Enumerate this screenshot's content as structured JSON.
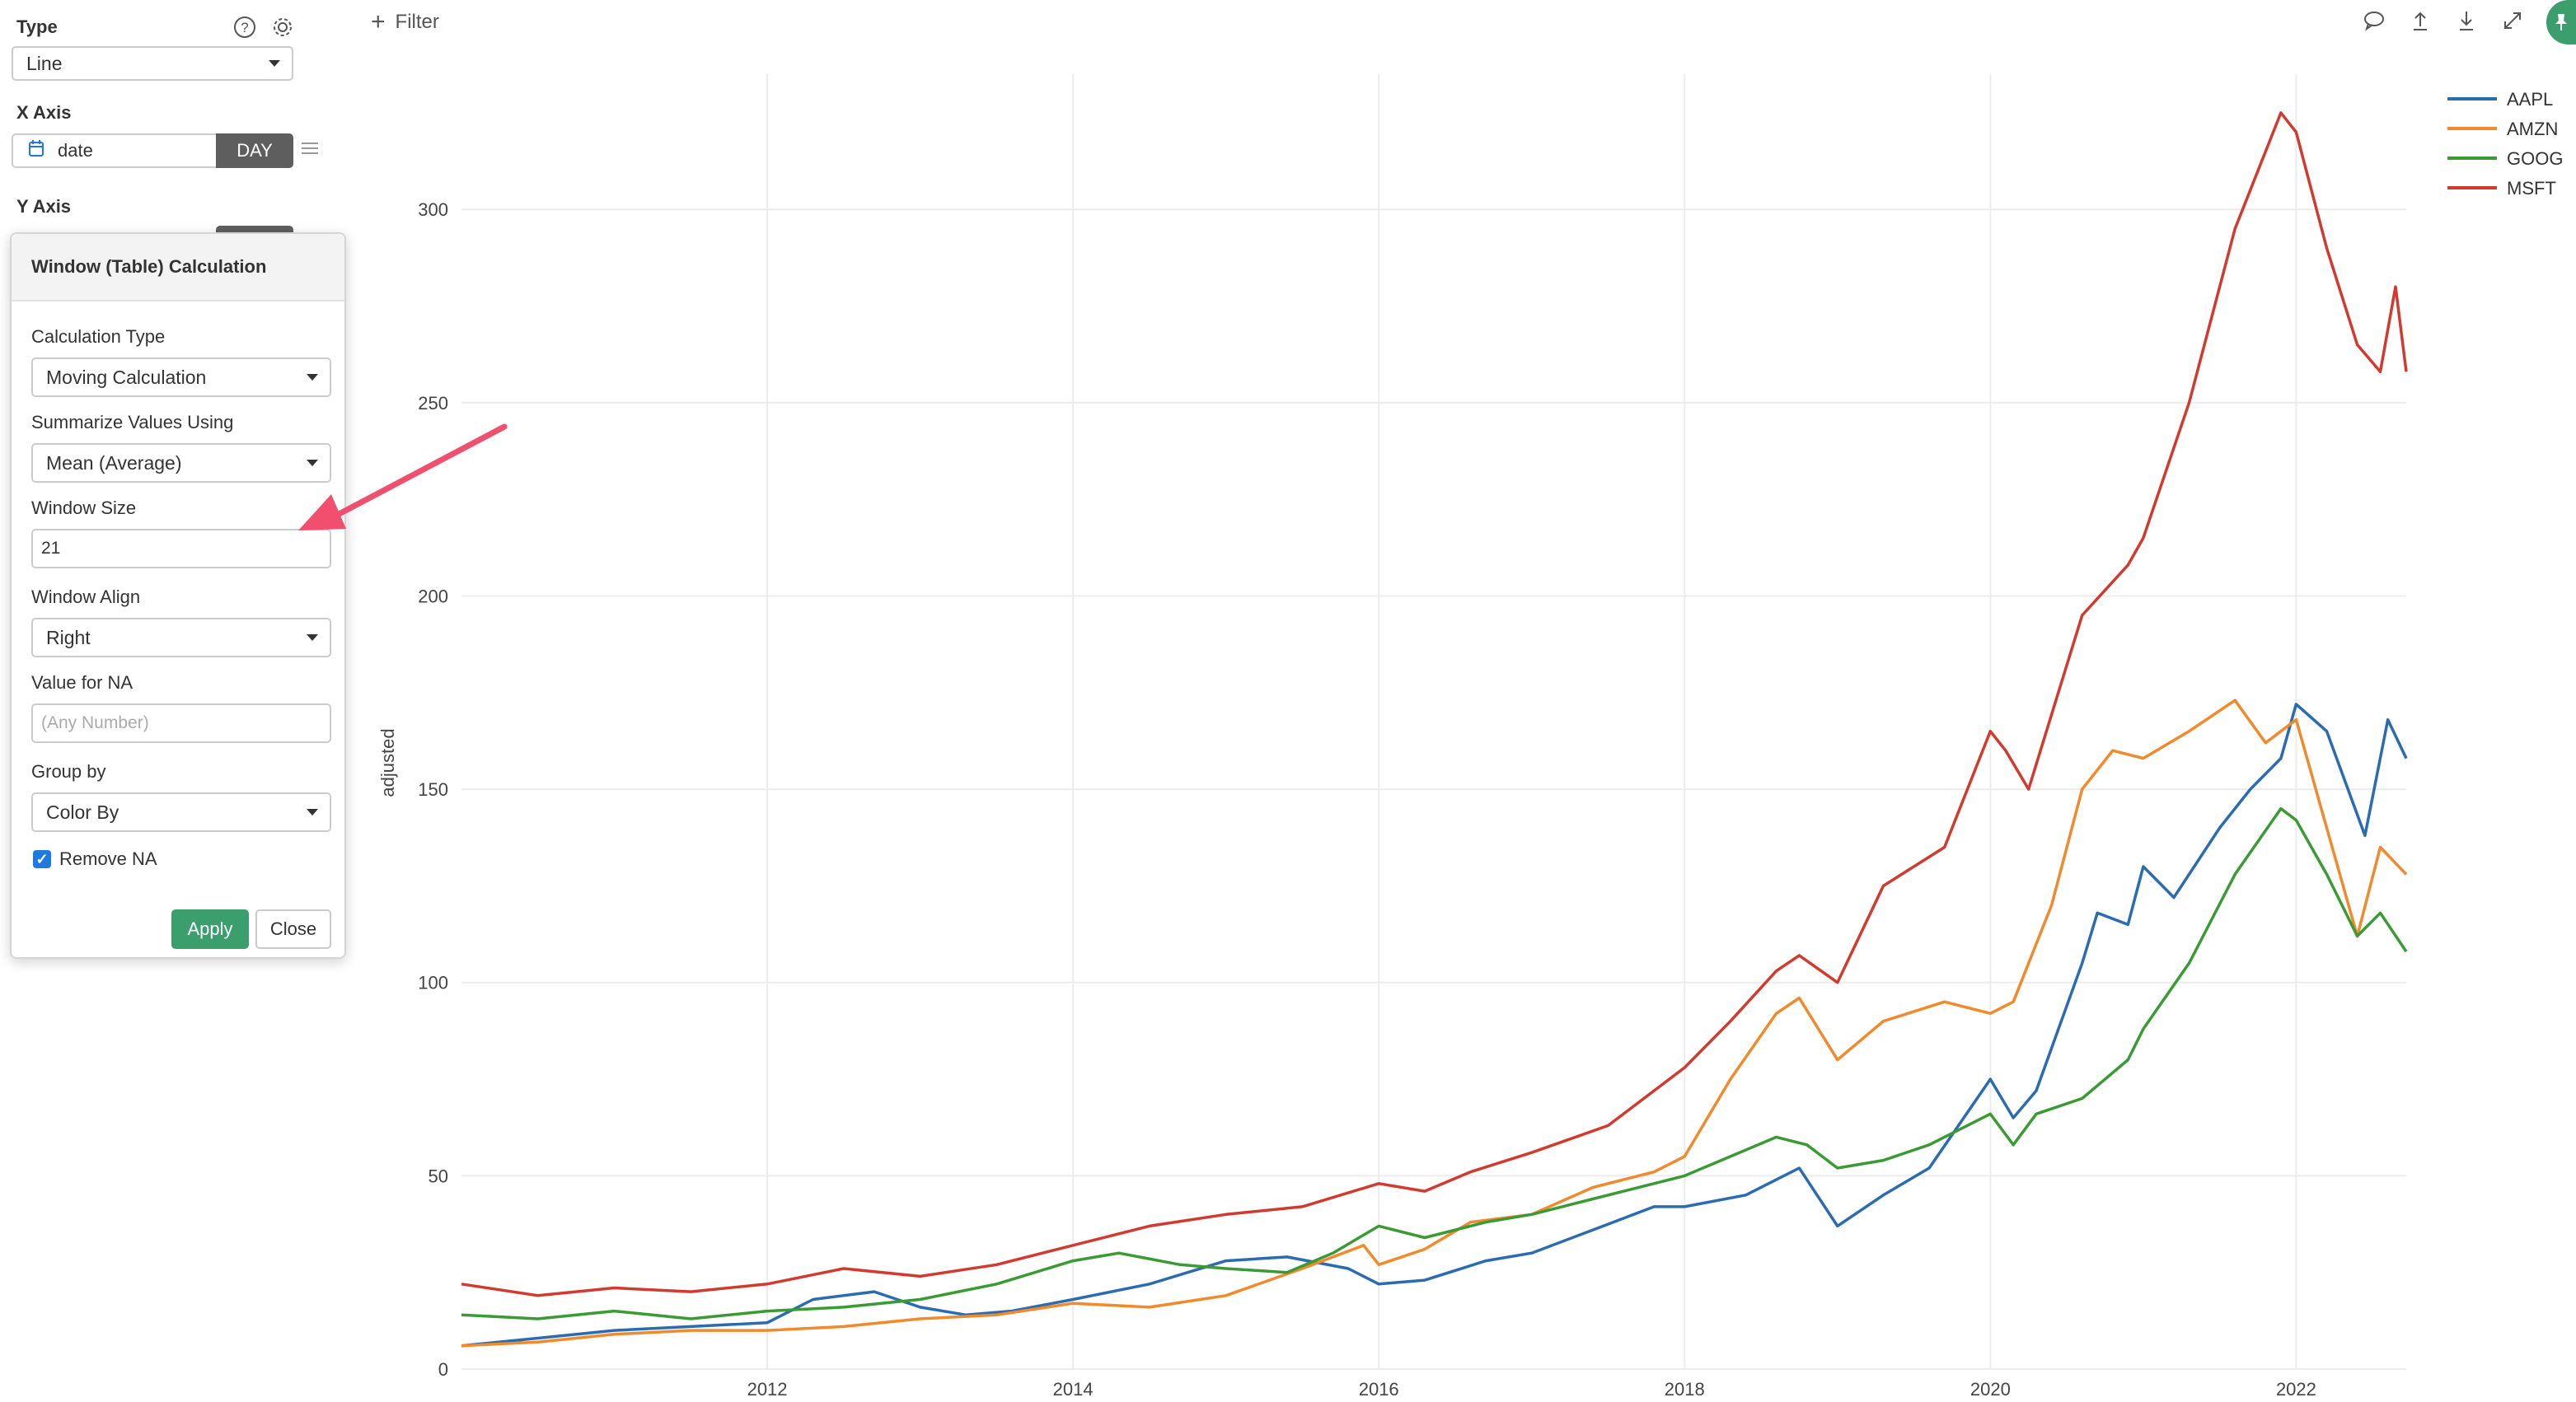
{
  "sidebar": {
    "type_label": "Type",
    "type_value": "Line",
    "xaxis_label": "X Axis",
    "xaxis_field": "date",
    "xaxis_unit": "DAY",
    "yaxis_label": "Y Axis"
  },
  "popover": {
    "title": "Window (Table) Calculation",
    "calc_type_label": "Calculation Type",
    "calc_type_value": "Moving Calculation",
    "summarize_label": "Summarize Values Using",
    "summarize_value": "Mean (Average)",
    "window_size_label": "Window Size",
    "window_size_value": "21",
    "window_align_label": "Window Align",
    "window_align_value": "Right",
    "na_label": "Value for NA",
    "na_placeholder": "(Any Number)",
    "group_by_label": "Group by",
    "group_by_value": "Color By",
    "remove_na_label": "Remove NA",
    "remove_na_checked": true,
    "apply_label": "Apply",
    "close_label": "Close"
  },
  "toolbar": {
    "filter_label": "Filter",
    "icons": [
      "comment-icon",
      "upload-icon",
      "download-icon",
      "expand-icon",
      "pin-icon"
    ]
  },
  "colors": {
    "AAPL": "#2b6cb0",
    "AMZN": "#f08a2c",
    "GOOG": "#3a9a34",
    "MSFT": "#d03a2f",
    "accent_green": "#3a9e6d",
    "annotation_arrow": "#f0506e"
  },
  "chart_data": {
    "type": "line",
    "xlabel": "",
    "ylabel": "adjusted",
    "ylim": [
      0,
      335
    ],
    "yticks": [
      0,
      50,
      100,
      150,
      200,
      250,
      300
    ],
    "xticks": [
      "2012",
      "2014",
      "2016",
      "2018",
      "2020",
      "2022"
    ],
    "xlim": [
      2010.0,
      2022.72
    ],
    "grid": true,
    "legend_position": "top-right",
    "series": [
      {
        "name": "AAPL",
        "x": [
          2010.0,
          2010.5,
          2011.0,
          2011.5,
          2012.0,
          2012.3,
          2012.7,
          2013.0,
          2013.3,
          2013.6,
          2014.0,
          2014.5,
          2015.0,
          2015.4,
          2015.8,
          2016.0,
          2016.3,
          2016.7,
          2017.0,
          2017.4,
          2017.8,
          2018.0,
          2018.4,
          2018.75,
          2019.0,
          2019.3,
          2019.6,
          2020.0,
          2020.15,
          2020.3,
          2020.6,
          2020.7,
          2020.9,
          2021.0,
          2021.2,
          2021.5,
          2021.7,
          2021.9,
          2022.0,
          2022.2,
          2022.45,
          2022.6,
          2022.72
        ],
        "y": [
          6,
          8,
          10,
          11,
          12,
          18,
          20,
          16,
          14,
          15,
          18,
          22,
          28,
          29,
          26,
          22,
          23,
          28,
          30,
          36,
          42,
          42,
          45,
          52,
          37,
          45,
          52,
          75,
          65,
          72,
          105,
          118,
          115,
          130,
          122,
          140,
          150,
          158,
          172,
          165,
          138,
          168,
          158
        ]
      },
      {
        "name": "AMZN",
        "x": [
          2010.0,
          2010.5,
          2011.0,
          2011.5,
          2012.0,
          2012.5,
          2013.0,
          2013.5,
          2014.0,
          2014.5,
          2015.0,
          2015.5,
          2015.9,
          2016.0,
          2016.3,
          2016.6,
          2017.0,
          2017.4,
          2017.8,
          2018.0,
          2018.3,
          2018.6,
          2018.75,
          2019.0,
          2019.3,
          2019.7,
          2020.0,
          2020.15,
          2020.4,
          2020.6,
          2020.8,
          2021.0,
          2021.3,
          2021.6,
          2021.8,
          2022.0,
          2022.2,
          2022.4,
          2022.55,
          2022.72
        ],
        "y": [
          6,
          7,
          9,
          10,
          10,
          11,
          13,
          14,
          17,
          16,
          19,
          26,
          32,
          27,
          31,
          38,
          40,
          47,
          51,
          55,
          75,
          92,
          96,
          80,
          90,
          95,
          92,
          95,
          120,
          150,
          160,
          158,
          165,
          173,
          162,
          168,
          140,
          112,
          135,
          128
        ]
      },
      {
        "name": "GOOG",
        "x": [
          2010.0,
          2010.5,
          2011.0,
          2011.5,
          2012.0,
          2012.5,
          2013.0,
          2013.5,
          2014.0,
          2014.3,
          2014.7,
          2015.0,
          2015.4,
          2015.7,
          2016.0,
          2016.3,
          2016.7,
          2017.0,
          2017.4,
          2017.8,
          2018.0,
          2018.3,
          2018.6,
          2018.8,
          2019.0,
          2019.3,
          2019.6,
          2020.0,
          2020.15,
          2020.3,
          2020.6,
          2020.9,
          2021.0,
          2021.3,
          2021.6,
          2021.9,
          2022.0,
          2022.2,
          2022.4,
          2022.55,
          2022.72
        ],
        "y": [
          14,
          13,
          15,
          13,
          15,
          16,
          18,
          22,
          28,
          30,
          27,
          26,
          25,
          30,
          37,
          34,
          38,
          40,
          44,
          48,
          50,
          55,
          60,
          58,
          52,
          54,
          58,
          66,
          58,
          66,
          70,
          80,
          88,
          105,
          128,
          145,
          142,
          128,
          112,
          118,
          108
        ]
      },
      {
        "name": "MSFT",
        "x": [
          2010.0,
          2010.5,
          2011.0,
          2011.5,
          2012.0,
          2012.5,
          2013.0,
          2013.5,
          2014.0,
          2014.5,
          2015.0,
          2015.5,
          2016.0,
          2016.3,
          2016.6,
          2017.0,
          2017.5,
          2018.0,
          2018.3,
          2018.6,
          2018.75,
          2019.0,
          2019.3,
          2019.7,
          2020.0,
          2020.1,
          2020.25,
          2020.6,
          2020.9,
          2021.0,
          2021.3,
          2021.6,
          2021.9,
          2022.0,
          2022.2,
          2022.4,
          2022.55,
          2022.65,
          2022.72
        ],
        "y": [
          22,
          19,
          21,
          20,
          22,
          26,
          24,
          27,
          32,
          37,
          40,
          42,
          48,
          46,
          51,
          56,
          63,
          78,
          90,
          103,
          107,
          100,
          125,
          135,
          165,
          160,
          150,
          195,
          208,
          215,
          250,
          295,
          325,
          320,
          290,
          265,
          258,
          280,
          258
        ]
      }
    ]
  }
}
